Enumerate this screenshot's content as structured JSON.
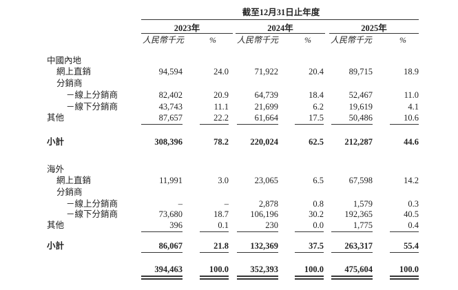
{
  "header": {
    "period": "截至12月31日止年度",
    "years": [
      "2023年",
      "2024年",
      "2025年"
    ],
    "units": [
      "人民幣千元",
      "%"
    ]
  },
  "rows": [
    {
      "label": "中國內地"
    },
    {
      "label": "網上直銷",
      "values": [
        "94,594",
        "24.0",
        "71,922",
        "20.4",
        "89,715",
        "18.9"
      ]
    },
    {
      "label": "分銷商"
    },
    {
      "label": "－線上分銷商",
      "values": [
        "82,402",
        "20.9",
        "64,739",
        "18.4",
        "52,467",
        "11.0"
      ]
    },
    {
      "label": "－線下分銷商",
      "values": [
        "43,743",
        "11.1",
        "21,699",
        "6.2",
        "19,619",
        "4.1"
      ]
    },
    {
      "label": "其他",
      "values": [
        "87,657",
        "22.2",
        "61,664",
        "17.5",
        "50,486",
        "10.6"
      ]
    },
    {
      "label": "小計",
      "values": [
        "308,396",
        "78.2",
        "220,024",
        "62.5",
        "212,287",
        "44.6"
      ]
    },
    {
      "label": "海外"
    },
    {
      "label": "網上直銷",
      "values": [
        "11,991",
        "3.0",
        "23,065",
        "6.5",
        "67,598",
        "14.2"
      ]
    },
    {
      "label": "分銷商"
    },
    {
      "label": "－線上分銷商",
      "values": [
        "–",
        "–",
        "2,878",
        "0.8",
        "1,579",
        "0.3"
      ]
    },
    {
      "label": "－線下分銷商",
      "values": [
        "73,680",
        "18.7",
        "106,196",
        "30.2",
        "192,365",
        "40.5"
      ]
    },
    {
      "label": "其他",
      "values": [
        "396",
        "0.1",
        "230",
        "0.0",
        "1,775",
        "0.4"
      ]
    },
    {
      "label": "小計",
      "values": [
        "86,067",
        "21.8",
        "132,369",
        "37.5",
        "263,317",
        "55.4"
      ]
    },
    {
      "values": [
        "394,463",
        "100.0",
        "352,393",
        "100.0",
        "475,604",
        "100.0"
      ]
    }
  ]
}
